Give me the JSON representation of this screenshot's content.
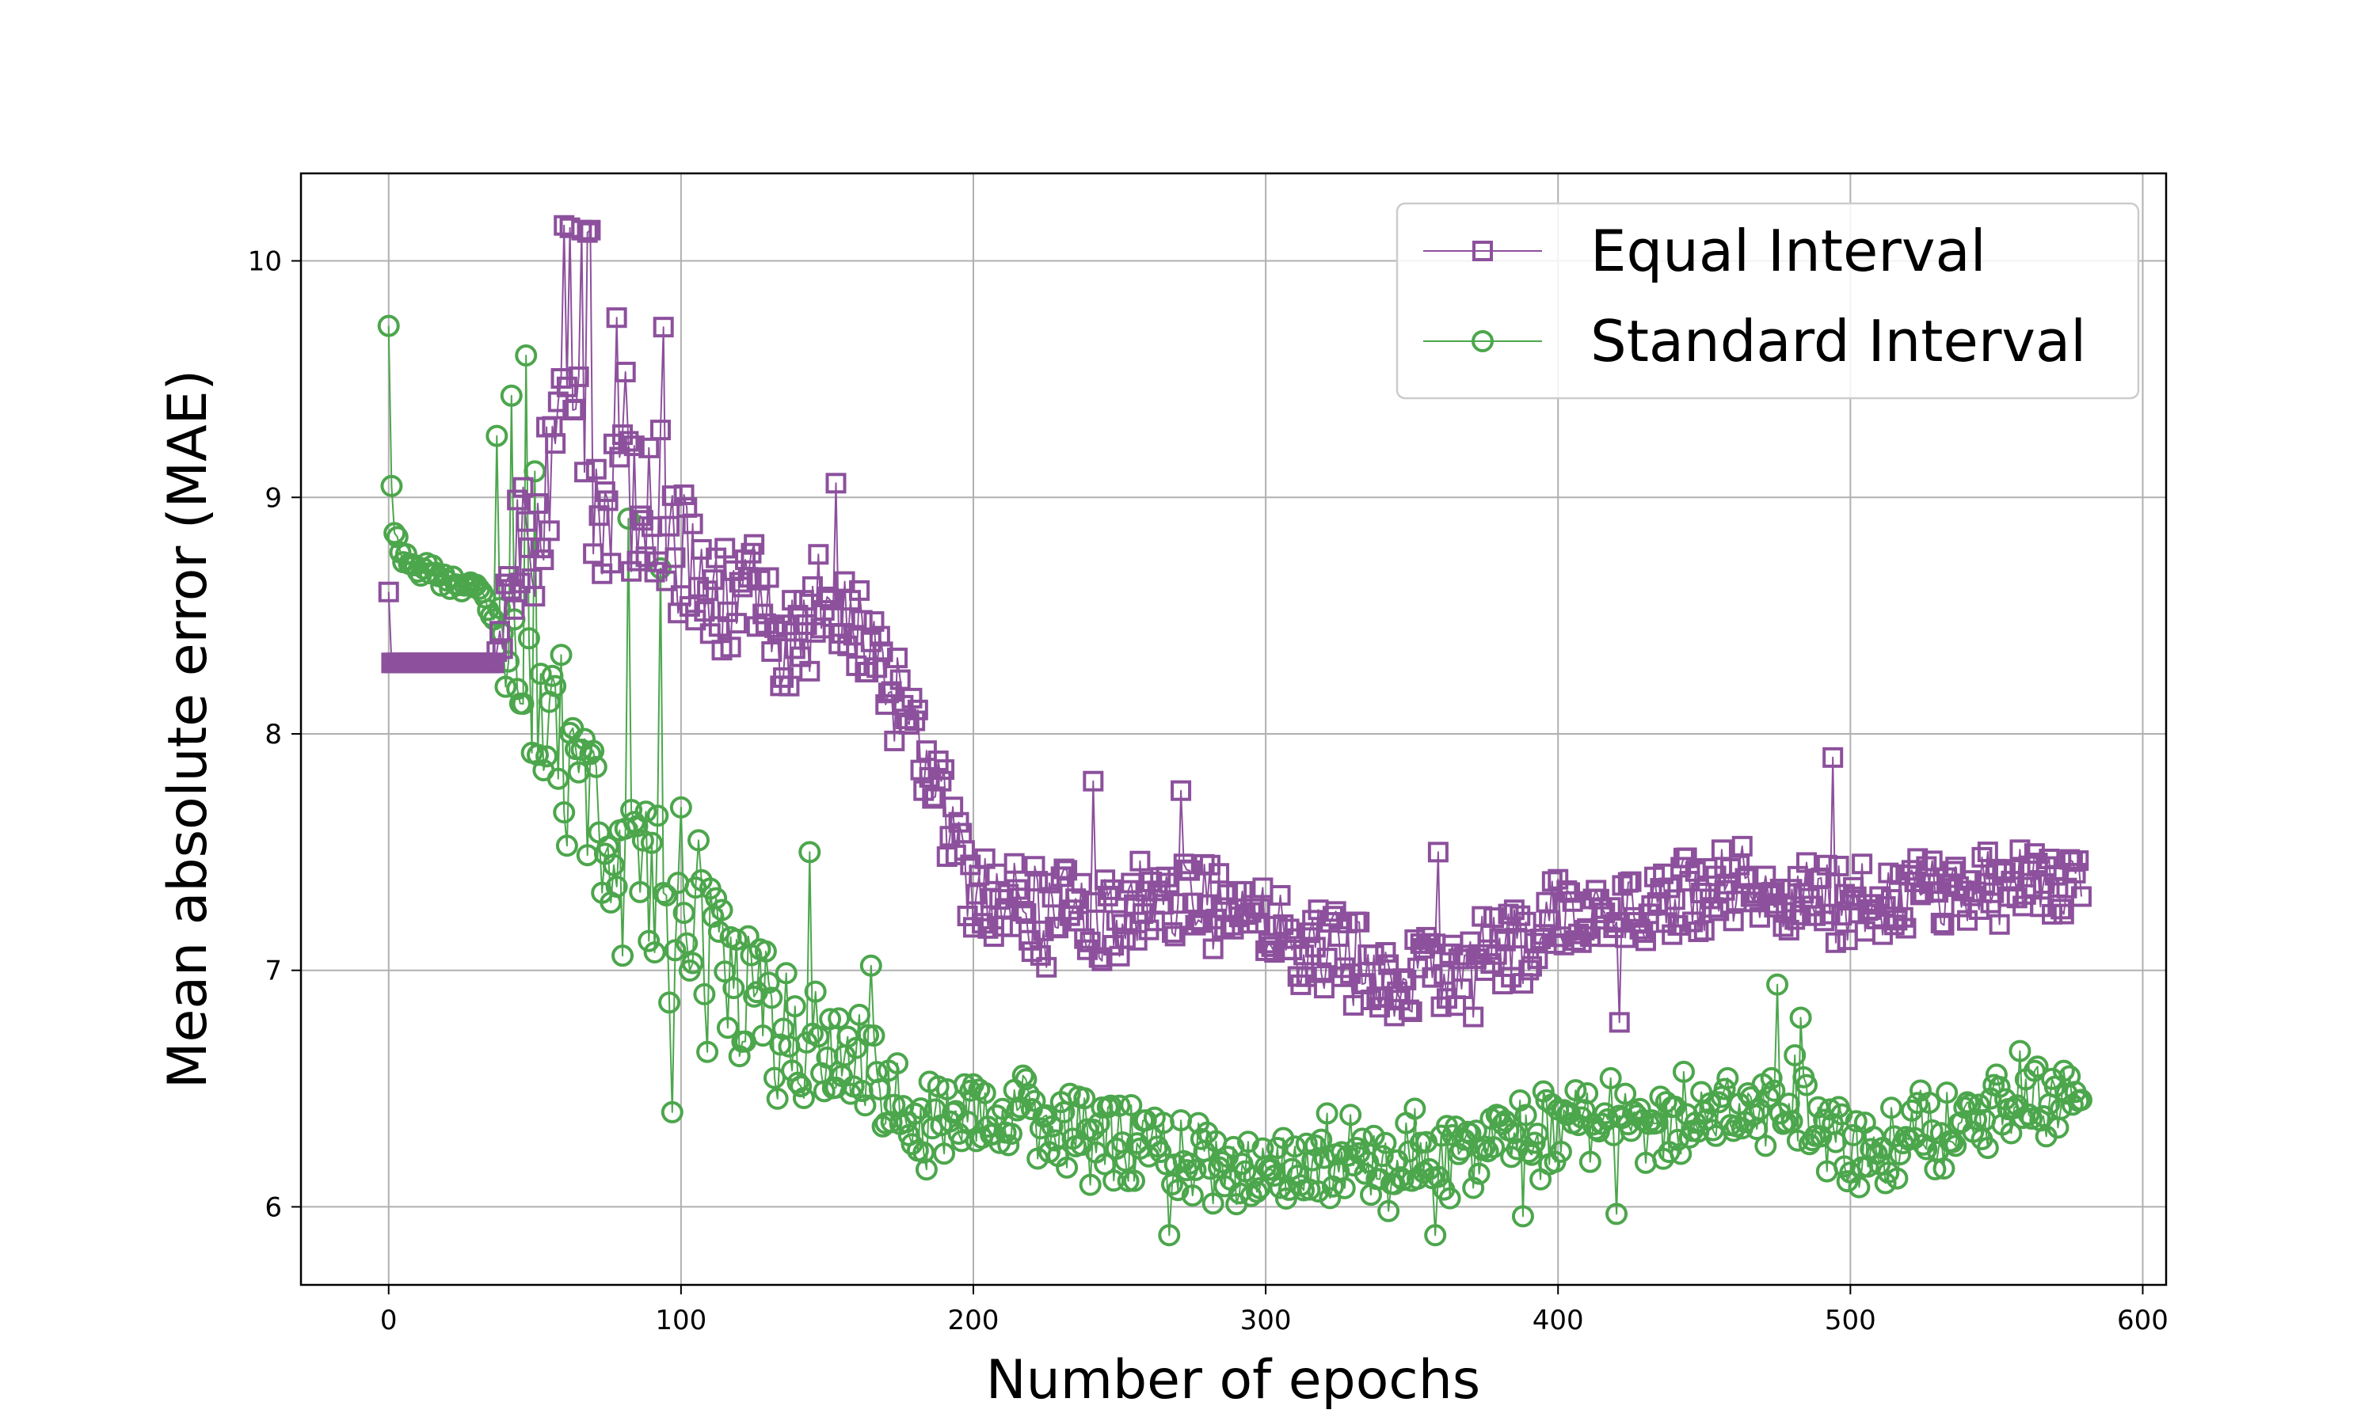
{
  "chart_data": {
    "type": "line",
    "xlabel": "Number of epochs",
    "ylabel": "Mean absolute error (MAE)",
    "xlim": [
      -30,
      608
    ],
    "ylim": [
      5.67,
      10.37
    ],
    "xticks": [
      0,
      100,
      200,
      300,
      400,
      500,
      600
    ],
    "yticks": [
      6,
      7,
      8,
      9,
      10
    ],
    "grid": true,
    "legend_position": "top-right",
    "colors": {
      "equal": "#8c509c",
      "standard": "#4ca64c"
    },
    "markers": {
      "equal": "square-marker",
      "standard": "circle-marker"
    },
    "epochs_shown": 580,
    "series": [
      {
        "name": "Equal Interval",
        "key": "equal",
        "anchors": [
          [
            0,
            8.6
          ],
          [
            1,
            8.3
          ],
          [
            36,
            8.3
          ],
          [
            40,
            8.5
          ],
          [
            45,
            8.8
          ],
          [
            50,
            8.7
          ],
          [
            55,
            9.0
          ],
          [
            60,
            9.5
          ],
          [
            65,
            9.3
          ],
          [
            70,
            9.0
          ],
          [
            80,
            8.9
          ],
          [
            90,
            8.9
          ],
          [
            100,
            8.8
          ],
          [
            110,
            8.6
          ],
          [
            120,
            8.6
          ],
          [
            130,
            8.5
          ],
          [
            140,
            8.4
          ],
          [
            150,
            8.5
          ],
          [
            160,
            8.4
          ],
          [
            170,
            8.3
          ],
          [
            180,
            8.0
          ],
          [
            190,
            7.7
          ],
          [
            195,
            7.45
          ],
          [
            200,
            7.35
          ],
          [
            210,
            7.3
          ],
          [
            220,
            7.25
          ],
          [
            240,
            7.2
          ],
          [
            260,
            7.25
          ],
          [
            280,
            7.3
          ],
          [
            300,
            7.25
          ],
          [
            310,
            7.15
          ],
          [
            320,
            7.05
          ],
          [
            340,
            7.0
          ],
          [
            360,
            6.98
          ],
          [
            370,
            7.0
          ],
          [
            380,
            7.1
          ],
          [
            390,
            7.15
          ],
          [
            400,
            7.2
          ],
          [
            420,
            7.25
          ],
          [
            440,
            7.3
          ],
          [
            460,
            7.35
          ],
          [
            480,
            7.3
          ],
          [
            500,
            7.3
          ],
          [
            520,
            7.32
          ],
          [
            540,
            7.33
          ],
          [
            560,
            7.35
          ],
          [
            580,
            7.35
          ]
        ],
        "noise": [
          [
            0,
            0.0
          ],
          [
            36,
            0.0
          ],
          [
            45,
            0.35
          ],
          [
            80,
            0.35
          ],
          [
            120,
            0.25
          ],
          [
            170,
            0.2
          ],
          [
            200,
            0.18
          ],
          [
            300,
            0.17
          ],
          [
            380,
            0.16
          ],
          [
            580,
            0.13
          ]
        ],
        "spikes": [
          [
            60,
            10.15
          ],
          [
            62,
            10.14
          ],
          [
            66,
            10.13
          ],
          [
            68,
            10.12
          ],
          [
            69,
            10.13
          ],
          [
            78,
            9.76
          ],
          [
            81,
            9.53
          ],
          [
            94,
            9.72
          ],
          [
            153,
            9.06
          ],
          [
            241,
            7.8
          ],
          [
            359,
            7.5
          ],
          [
            494,
            7.9
          ],
          [
            421,
            6.78
          ],
          [
            271,
            7.76
          ]
        ]
      },
      {
        "name": "Standard Interval",
        "key": "standard",
        "anchors": [
          [
            0,
            9.71
          ],
          [
            1,
            9.05
          ],
          [
            2,
            8.85
          ],
          [
            5,
            8.75
          ],
          [
            10,
            8.7
          ],
          [
            20,
            8.65
          ],
          [
            30,
            8.62
          ],
          [
            35,
            8.55
          ],
          [
            40,
            8.4
          ],
          [
            45,
            8.3
          ],
          [
            50,
            8.1
          ],
          [
            55,
            8.0
          ],
          [
            60,
            7.9
          ],
          [
            70,
            7.7
          ],
          [
            80,
            7.55
          ],
          [
            90,
            7.4
          ],
          [
            100,
            7.2
          ],
          [
            110,
            7.05
          ],
          [
            120,
            6.9
          ],
          [
            130,
            6.8
          ],
          [
            140,
            6.7
          ],
          [
            150,
            6.6
          ],
          [
            160,
            6.55
          ],
          [
            170,
            6.5
          ],
          [
            180,
            6.4
          ],
          [
            190,
            6.35
          ],
          [
            200,
            6.4
          ],
          [
            210,
            6.45
          ],
          [
            220,
            6.4
          ],
          [
            230,
            6.3
          ],
          [
            240,
            6.3
          ],
          [
            260,
            6.3
          ],
          [
            280,
            6.2
          ],
          [
            300,
            6.2
          ],
          [
            320,
            6.22
          ],
          [
            340,
            6.2
          ],
          [
            360,
            6.2
          ],
          [
            370,
            6.25
          ],
          [
            380,
            6.3
          ],
          [
            400,
            6.3
          ],
          [
            420,
            6.35
          ],
          [
            440,
            6.4
          ],
          [
            460,
            6.42
          ],
          [
            480,
            6.45
          ],
          [
            500,
            6.25
          ],
          [
            520,
            6.3
          ],
          [
            540,
            6.4
          ],
          [
            560,
            6.45
          ],
          [
            580,
            6.5
          ]
        ],
        "noise": [
          [
            0,
            0.02
          ],
          [
            35,
            0.05
          ],
          [
            45,
            0.3
          ],
          [
            90,
            0.45
          ],
          [
            120,
            0.3
          ],
          [
            170,
            0.2
          ],
          [
            200,
            0.18
          ],
          [
            300,
            0.17
          ],
          [
            580,
            0.17
          ]
        ],
        "spikes": [
          [
            47,
            9.6
          ],
          [
            42,
            9.43
          ],
          [
            37,
            9.26
          ],
          [
            50,
            9.11
          ],
          [
            82,
            8.91
          ],
          [
            93,
            8.7
          ],
          [
            97,
            6.4
          ],
          [
            144,
            7.5
          ],
          [
            165,
            7.02
          ],
          [
            267,
            5.88
          ],
          [
            358,
            5.88
          ],
          [
            475,
            6.94
          ],
          [
            483,
            6.8
          ],
          [
            388,
            5.96
          ],
          [
            420,
            5.97
          ]
        ]
      }
    ]
  }
}
